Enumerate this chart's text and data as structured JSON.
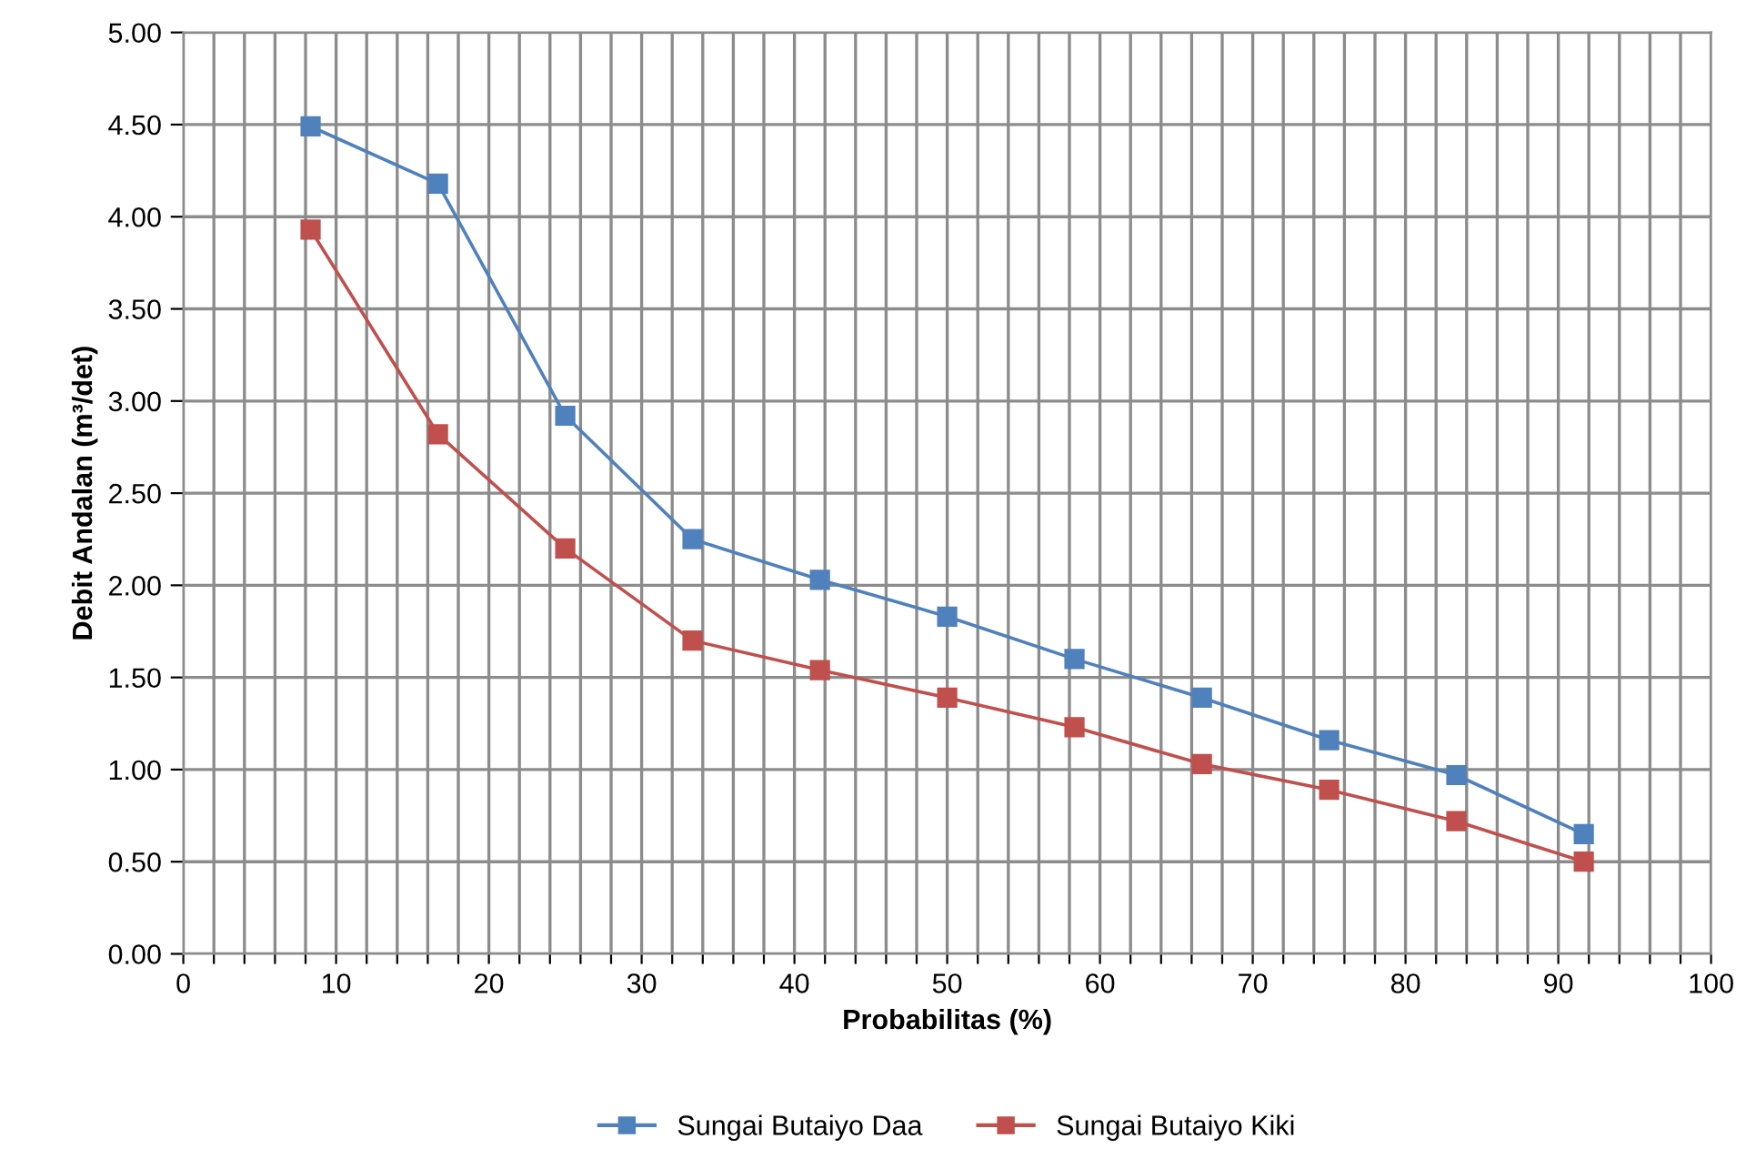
{
  "chart_data": {
    "type": "line",
    "xlabel": "Probabilitas (%)",
    "ylabel": "Debit Andalan (m³/det)",
    "x": [
      8.33,
      16.67,
      25,
      33.33,
      41.67,
      50,
      58.33,
      66.67,
      75,
      83.33,
      91.67
    ],
    "series": [
      {
        "name": "Sungai Butaiyo Daa",
        "color": "#4f81bd",
        "values": [
          4.49,
          4.18,
          2.92,
          2.25,
          2.03,
          1.83,
          1.6,
          1.39,
          1.16,
          0.97,
          0.65
        ]
      },
      {
        "name": "Sungai Butaiyo Kiki",
        "color": "#c0504d",
        "values": [
          3.93,
          2.82,
          2.2,
          1.7,
          1.54,
          1.39,
          1.23,
          1.03,
          0.89,
          0.72,
          0.5
        ]
      }
    ],
    "xlim": [
      0,
      100
    ],
    "xticks": [
      0,
      {
        "value": 2,
        "label": null
      },
      {
        "value": 4,
        "label": null
      },
      {
        "value": 6,
        "label": null
      },
      {
        "value": 8,
        "label": null
      },
      10,
      {
        "value": 12,
        "label": null
      },
      {
        "value": 14,
        "label": null
      },
      {
        "value": 16,
        "label": null
      },
      {
        "value": 18,
        "label": null
      },
      20,
      {
        "value": 22,
        "label": null
      },
      {
        "value": 24,
        "label": null
      },
      {
        "value": 26,
        "label": null
      },
      {
        "value": 28,
        "label": null
      },
      30,
      {
        "value": 32,
        "label": null
      },
      {
        "value": 34,
        "label": null
      },
      {
        "value": 36,
        "label": null
      },
      {
        "value": 38,
        "label": null
      },
      40,
      {
        "value": 42,
        "label": null
      },
      {
        "value": 44,
        "label": null
      },
      {
        "value": 46,
        "label": null
      },
      {
        "value": 48,
        "label": null
      },
      50,
      {
        "value": 52,
        "label": null
      },
      {
        "value": 54,
        "label": null
      },
      {
        "value": 56,
        "label": null
      },
      {
        "value": 58,
        "label": null
      },
      60,
      {
        "value": 62,
        "label": null
      },
      {
        "value": 64,
        "label": null
      },
      {
        "value": 66,
        "label": null
      },
      {
        "value": 68,
        "label": null
      },
      70,
      {
        "value": 72,
        "label": null
      },
      {
        "value": 74,
        "label": null
      },
      {
        "value": 76,
        "label": null
      },
      {
        "value": 78,
        "label": null
      },
      80,
      {
        "value": 82,
        "label": null
      },
      {
        "value": 84,
        "label": null
      },
      {
        "value": 86,
        "label": null
      },
      {
        "value": 88,
        "label": null
      },
      90,
      {
        "value": 92,
        "label": null
      },
      {
        "value": 94,
        "label": null
      },
      {
        "value": 96,
        "label": null
      },
      {
        "value": 98,
        "label": null
      },
      100
    ],
    "ylim": [
      0,
      5
    ],
    "yticks": [
      {
        "value": 0,
        "label": "0.00"
      },
      {
        "value": 0.5,
        "label": "0.50"
      },
      {
        "value": 1,
        "label": "1.00"
      },
      {
        "value": 1.5,
        "label": "1.50"
      },
      {
        "value": 2,
        "label": "2.00"
      },
      {
        "value": 2.5,
        "label": "2.50"
      },
      {
        "value": 3,
        "label": "3.00"
      },
      {
        "value": 3.5,
        "label": "3.50"
      },
      {
        "value": 4,
        "label": "4.00"
      },
      {
        "value": 4.5,
        "label": "4.50"
      },
      {
        "value": 5,
        "label": "5.00"
      }
    ],
    "grid": true,
    "legend": "bottom",
    "marker": "square",
    "line_style": "solid"
  }
}
